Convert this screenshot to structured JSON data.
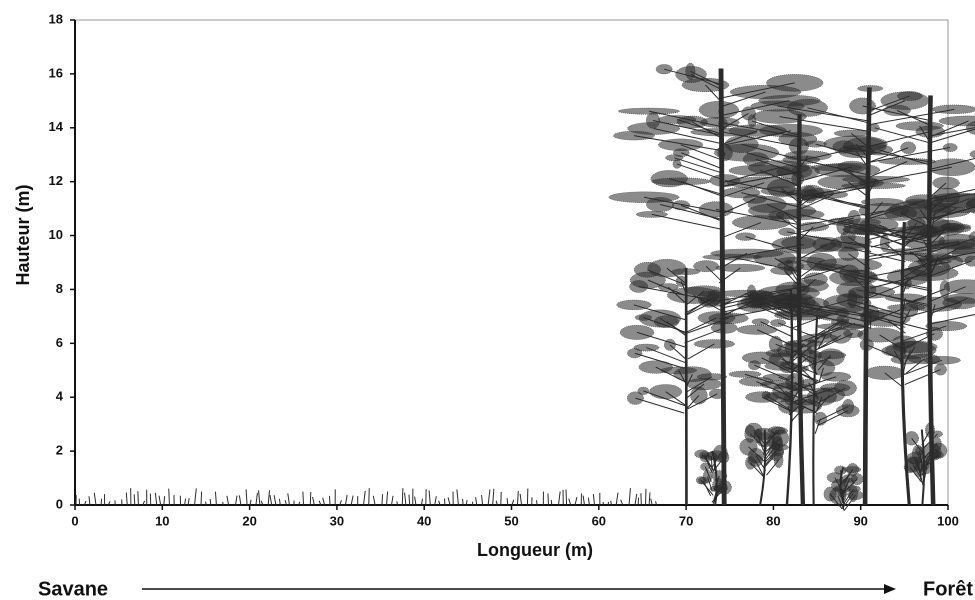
{
  "chart_data": {
    "type": "profile",
    "xlabel": "Longueur (m)",
    "ylabel": "Hauteur (m)",
    "xlim": [
      0,
      100
    ],
    "xticks": [
      0,
      10,
      20,
      30,
      40,
      50,
      60,
      70,
      80,
      90,
      100
    ],
    "ylim": [
      0,
      18
    ],
    "yticks": [
      0,
      2,
      4,
      6,
      8,
      10,
      12,
      14,
      16,
      18
    ],
    "annotations": {
      "left": "Savane",
      "right": "Forêt"
    },
    "color": "#2b2b2b",
    "trees": [
      {
        "x": 70,
        "height": 8.8
      },
      {
        "x": 73,
        "height": 2.0
      },
      {
        "x": 74,
        "height": 16.2
      },
      {
        "x": 79,
        "height": 2.8
      },
      {
        "x": 82,
        "height": 8.0
      },
      {
        "x": 83,
        "height": 14.5
      },
      {
        "x": 85,
        "height": 7.0
      },
      {
        "x": 88,
        "height": 1.4
      },
      {
        "x": 91,
        "height": 15.5
      },
      {
        "x": 95,
        "height": 10.5
      },
      {
        "x": 97,
        "height": 2.8
      },
      {
        "x": 98,
        "height": 15.2
      }
    ]
  }
}
